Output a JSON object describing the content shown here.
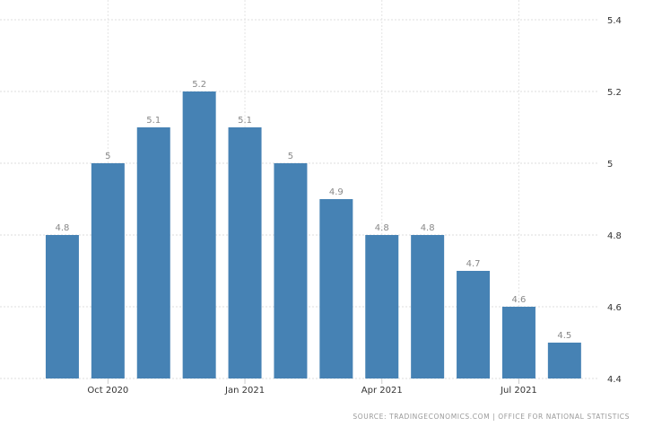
{
  "chart_data": {
    "type": "bar",
    "categories": [
      "Sep 2020",
      "Oct 2020",
      "Nov 2020",
      "Dec 2020",
      "Jan 2021",
      "Feb 2021",
      "Mar 2021",
      "Apr 2021",
      "May 2021",
      "Jun 2021",
      "Jul 2021",
      "Aug 2021"
    ],
    "values": [
      4.8,
      5,
      5.1,
      5.2,
      5.1,
      5,
      4.9,
      4.8,
      4.8,
      4.7,
      4.6,
      4.5
    ],
    "data_labels": [
      "4.8",
      "5",
      "5.1",
      "5.2",
      "5.1",
      "5",
      "4.9",
      "4.8",
      "4.8",
      "4.7",
      "4.6",
      "4.5"
    ],
    "x_tick_labels": [
      {
        "category": "Oct 2020",
        "label": "Oct 2020"
      },
      {
        "category": "Jan 2021",
        "label": "Jan 2021"
      },
      {
        "category": "Apr 2021",
        "label": "Apr 2021"
      },
      {
        "category": "Jul 2021",
        "label": "Jul 2021"
      }
    ],
    "y_ticks": [
      4.4,
      4.6,
      4.8,
      5,
      5.2,
      5.4
    ],
    "y_tick_labels": [
      "4.4",
      "4.6",
      "4.8",
      "5",
      "5.2",
      "5.4"
    ],
    "ylim": [
      4.4,
      5.4
    ],
    "y_axis_side": "right",
    "grid": true,
    "bar_color": "#4682b4",
    "title": "",
    "xlabel": "",
    "ylabel": ""
  },
  "source": "SOURCE: TRADINGECONOMICS.COM  |  OFFICE FOR NATIONAL STATISTICS"
}
